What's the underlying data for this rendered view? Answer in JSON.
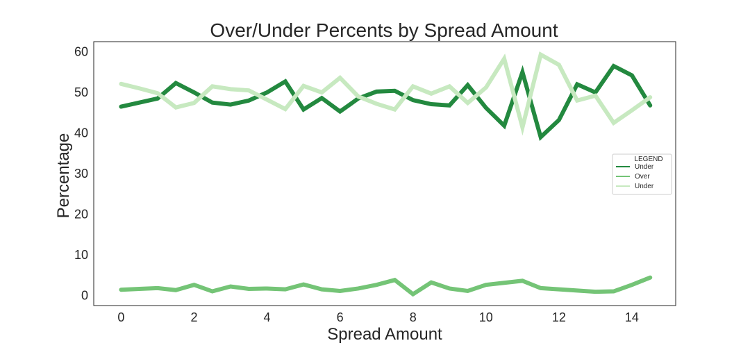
{
  "chart_data": {
    "type": "line",
    "title": "Over/Under Percents by Spread Amount",
    "xlabel": "Spread Amount",
    "ylabel": "Percentage",
    "xlim": [
      -0.75,
      15.2
    ],
    "ylim": [
      -2.5,
      62.5
    ],
    "xticks": [
      0,
      2,
      4,
      6,
      8,
      10,
      12,
      14
    ],
    "yticks": [
      0,
      10,
      20,
      30,
      40,
      50,
      60
    ],
    "grid": false,
    "legend": {
      "title": "LEGEND",
      "placement": "center-right"
    },
    "x": [
      0,
      0.5,
      1,
      1.5,
      2,
      2.5,
      3,
      3.5,
      4,
      4.5,
      5,
      5.5,
      6,
      6.5,
      7,
      7.5,
      8,
      8.5,
      9,
      9.5,
      10,
      10.5,
      11,
      11.5,
      12,
      12.5,
      13,
      13.5,
      14,
      14.5
    ],
    "series": [
      {
        "name": "Under",
        "color": "#23893f",
        "values": [
          46.5,
          47.5,
          48.5,
          52.3,
          50.0,
          47.5,
          47.0,
          48.0,
          50.0,
          52.7,
          45.8,
          48.6,
          45.3,
          48.5,
          50.2,
          50.4,
          48.1,
          47.1,
          46.8,
          51.8,
          46.2,
          41.8,
          55.0,
          39.0,
          43.2,
          52.0,
          50.0,
          56.5,
          54.2,
          46.8
        ]
      },
      {
        "name": "Over",
        "color": "#74c476",
        "values": [
          1.4,
          1.6,
          1.8,
          1.3,
          2.6,
          1.0,
          2.2,
          1.6,
          1.7,
          1.5,
          2.7,
          1.5,
          1.1,
          1.7,
          2.6,
          3.8,
          0.3,
          3.2,
          1.7,
          1.1,
          2.6,
          3.1,
          3.6,
          1.8,
          1.5,
          1.2,
          0.9,
          1.0,
          2.6,
          4.4
        ]
      },
      {
        "name": "Under",
        "color": "#c7e9c0",
        "values": [
          52.1,
          51.0,
          49.8,
          46.3,
          47.4,
          51.5,
          50.8,
          50.5,
          48.2,
          45.9,
          51.6,
          50.0,
          53.6,
          49.0,
          47.2,
          45.8,
          51.5,
          49.7,
          51.5,
          47.4,
          51.2,
          58.3,
          41.4,
          59.3,
          56.8,
          48.0,
          49.2,
          42.5,
          45.6,
          48.8
        ]
      }
    ]
  }
}
